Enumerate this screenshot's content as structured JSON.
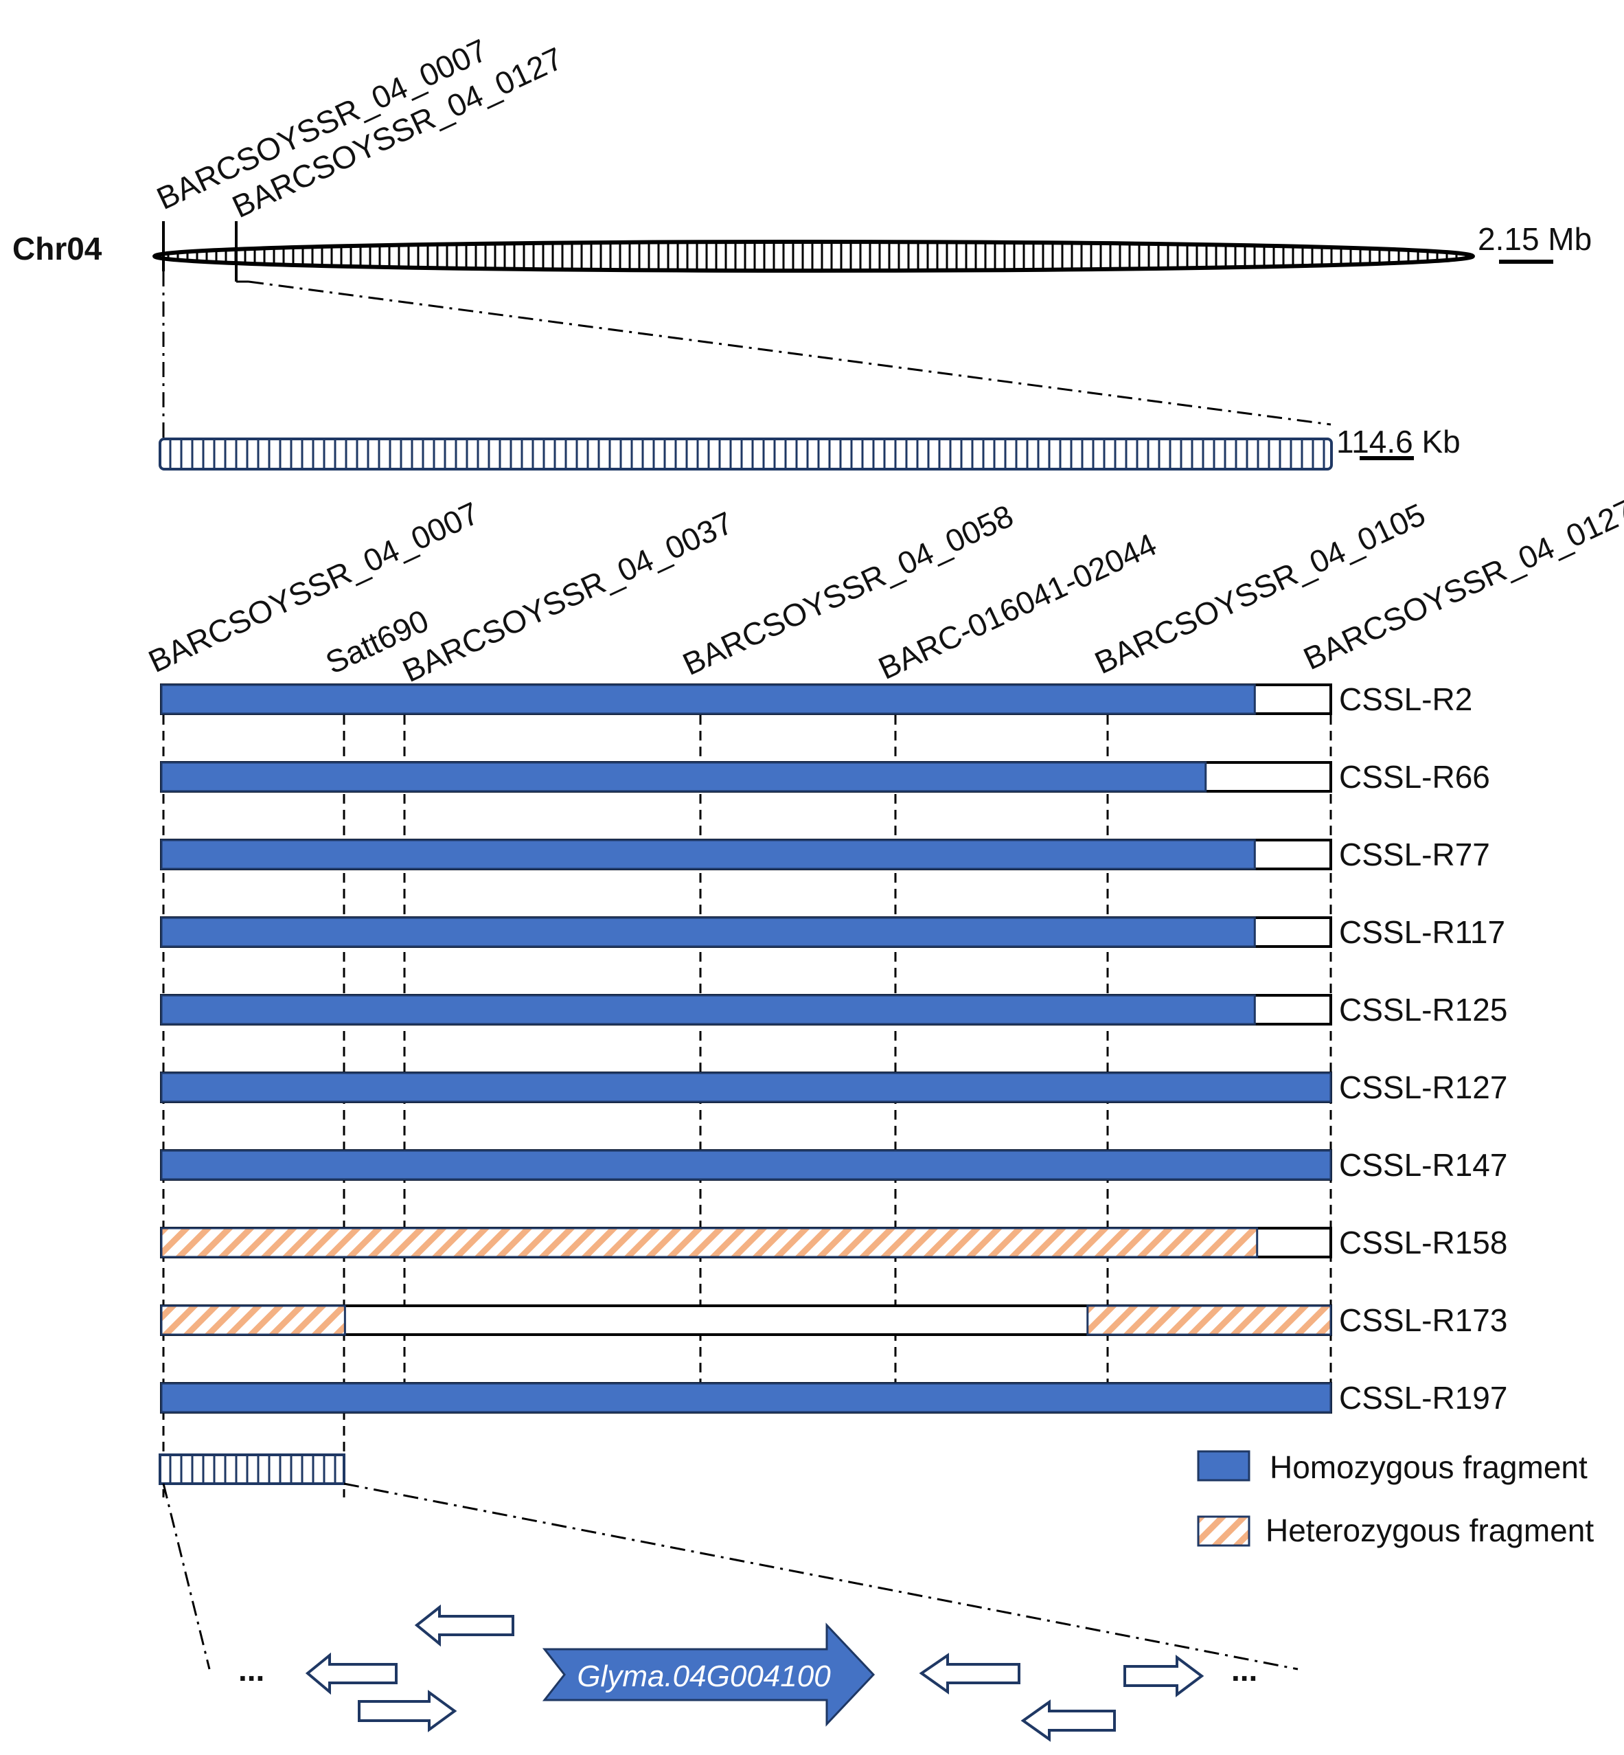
{
  "chromosome": {
    "label": "Chr04",
    "scale_label": "2.15 Mb",
    "top_markers": [
      "BARCSOYSSR_04_0007",
      "BARCSOYSSR_04_0127"
    ]
  },
  "zoom_region": {
    "scale_label": "114.6 Kb"
  },
  "markers": [
    "BARCSOYSSR_04_0007",
    "Satt690",
    "BARCSOYSSR_04_0037",
    "BARCSOYSSR_04_0058",
    "BARC-016041-02044",
    "BARCSOYSSR_04_0105",
    "BARCSOYSSR_04_0127"
  ],
  "lines": [
    {
      "name": "CSSL-R2",
      "segments": [
        {
          "type": "homozygous",
          "start": 0,
          "end": 0.935
        }
      ]
    },
    {
      "name": "CSSL-R66",
      "segments": [
        {
          "type": "homozygous",
          "start": 0,
          "end": 0.893
        }
      ]
    },
    {
      "name": "CSSL-R77",
      "segments": [
        {
          "type": "homozygous",
          "start": 0,
          "end": 0.935
        }
      ]
    },
    {
      "name": "CSSL-R117",
      "segments": [
        {
          "type": "homozygous",
          "start": 0,
          "end": 0.935
        }
      ]
    },
    {
      "name": "CSSL-R125",
      "segments": [
        {
          "type": "homozygous",
          "start": 0,
          "end": 0.935
        }
      ]
    },
    {
      "name": "CSSL-R127",
      "segments": [
        {
          "type": "homozygous",
          "start": 0,
          "end": 1.0
        }
      ]
    },
    {
      "name": "CSSL-R147",
      "segments": [
        {
          "type": "homozygous",
          "start": 0,
          "end": 1.0
        }
      ]
    },
    {
      "name": "CSSL-R158",
      "segments": [
        {
          "type": "heterozygous",
          "start": 0,
          "end": 0.937
        }
      ]
    },
    {
      "name": "CSSL-R173",
      "segments": [
        {
          "type": "heterozygous",
          "start": 0,
          "end": 0.157
        },
        {
          "type": "heterozygous",
          "start": 0.792,
          "end": 1.0
        }
      ]
    },
    {
      "name": "CSSL-R197",
      "segments": [
        {
          "type": "homozygous",
          "start": 0,
          "end": 1.0
        }
      ]
    }
  ],
  "legend": {
    "homozygous": "Homozygous fragment",
    "heterozygous": "Heterozygous fragment"
  },
  "genes": {
    "candidate": "Glyma.04G004100",
    "ellipsis_left": "...",
    "ellipsis_right": "..."
  },
  "colors": {
    "homozygous": "#4472c4",
    "heterozygous_stripe": "#f4b183",
    "outline": "#1f3864",
    "gene_outline": "#1f3864"
  }
}
